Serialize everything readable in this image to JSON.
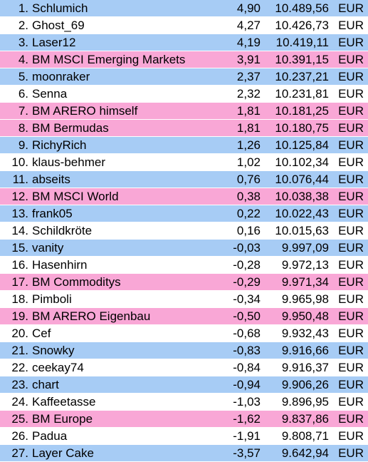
{
  "colors": {
    "blue": "#a7ccf5",
    "white": "#ffffff",
    "pink": "#f9a7d6"
  },
  "rows": [
    {
      "rank": "1.",
      "name": "Schlumich",
      "pct": "4,90",
      "value": "10.489,56",
      "currency": "EUR",
      "color": "blue"
    },
    {
      "rank": "2.",
      "name": "Ghost_69",
      "pct": "4,27",
      "value": "10.426,73",
      "currency": "EUR",
      "color": "white"
    },
    {
      "rank": "3.",
      "name": "Laser12",
      "pct": "4,19",
      "value": "10.419,11",
      "currency": "EUR",
      "color": "blue"
    },
    {
      "rank": "4.",
      "name": "BM MSCI Emerging Markets",
      "pct": "3,91",
      "value": "10.391,15",
      "currency": "EUR",
      "color": "pink"
    },
    {
      "rank": "5.",
      "name": "moonraker",
      "pct": "2,37",
      "value": "10.237,21",
      "currency": "EUR",
      "color": "blue"
    },
    {
      "rank": "6.",
      "name": "Senna",
      "pct": "2,32",
      "value": "10.231,81",
      "currency": "EUR",
      "color": "white"
    },
    {
      "rank": "7.",
      "name": "BM ARERO himself",
      "pct": "1,81",
      "value": "10.181,25",
      "currency": "EUR",
      "color": "pink"
    },
    {
      "rank": "8.",
      "name": "BM Bermudas",
      "pct": "1,81",
      "value": "10.180,75",
      "currency": "EUR",
      "color": "pink"
    },
    {
      "rank": "9.",
      "name": "RichyRich",
      "pct": "1,26",
      "value": "10.125,84",
      "currency": "EUR",
      "color": "blue"
    },
    {
      "rank": "10.",
      "name": "klaus-behmer",
      "pct": "1,02",
      "value": "10.102,34",
      "currency": "EUR",
      "color": "white"
    },
    {
      "rank": "11.",
      "name": "abseits",
      "pct": "0,76",
      "value": "10.076,44",
      "currency": "EUR",
      "color": "blue"
    },
    {
      "rank": "12.",
      "name": "BM MSCI World",
      "pct": "0,38",
      "value": "10.038,38",
      "currency": "EUR",
      "color": "pink"
    },
    {
      "rank": "13.",
      "name": "frank05",
      "pct": "0,22",
      "value": "10.022,43",
      "currency": "EUR",
      "color": "blue"
    },
    {
      "rank": "14.",
      "name": "Schildkröte",
      "pct": "0,16",
      "value": "10.015,63",
      "currency": "EUR",
      "color": "white"
    },
    {
      "rank": "15.",
      "name": "vanity",
      "pct": "-0,03",
      "value": "9.997,09",
      "currency": "EUR",
      "color": "blue"
    },
    {
      "rank": "16.",
      "name": "Hasenhirn",
      "pct": "-0,28",
      "value": "9.972,13",
      "currency": "EUR",
      "color": "white"
    },
    {
      "rank": "17.",
      "name": "BM Commoditys",
      "pct": "-0,29",
      "value": "9.971,34",
      "currency": "EUR",
      "color": "pink"
    },
    {
      "rank": "18.",
      "name": "Pimboli",
      "pct": "-0,34",
      "value": "9.965,98",
      "currency": "EUR",
      "color": "white"
    },
    {
      "rank": "19.",
      "name": "BM ARERO Eigenbau",
      "pct": "-0,50",
      "value": "9.950,48",
      "currency": "EUR",
      "color": "pink"
    },
    {
      "rank": "20.",
      "name": "Cef",
      "pct": "-0,68",
      "value": "9.932,43",
      "currency": "EUR",
      "color": "white"
    },
    {
      "rank": "21.",
      "name": "Snowky",
      "pct": "-0,83",
      "value": "9.916,66",
      "currency": "EUR",
      "color": "blue"
    },
    {
      "rank": "22.",
      "name": "ceekay74",
      "pct": "-0,84",
      "value": "9.916,37",
      "currency": "EUR",
      "color": "white"
    },
    {
      "rank": "23.",
      "name": "chart",
      "pct": "-0,94",
      "value": "9.906,26",
      "currency": "EUR",
      "color": "blue"
    },
    {
      "rank": "24.",
      "name": "Kaffeetasse",
      "pct": "-1,03",
      "value": "9.896,95",
      "currency": "EUR",
      "color": "white"
    },
    {
      "rank": "25.",
      "name": "BM Europe",
      "pct": "-1,62",
      "value": "9.837,86",
      "currency": "EUR",
      "color": "pink"
    },
    {
      "rank": "26.",
      "name": "Padua",
      "pct": "-1,91",
      "value": "9.808,71",
      "currency": "EUR",
      "color": "white"
    },
    {
      "rank": "27.",
      "name": "Layer Cake",
      "pct": "-3,57",
      "value": "9.642,94",
      "currency": "EUR",
      "color": "blue"
    }
  ]
}
